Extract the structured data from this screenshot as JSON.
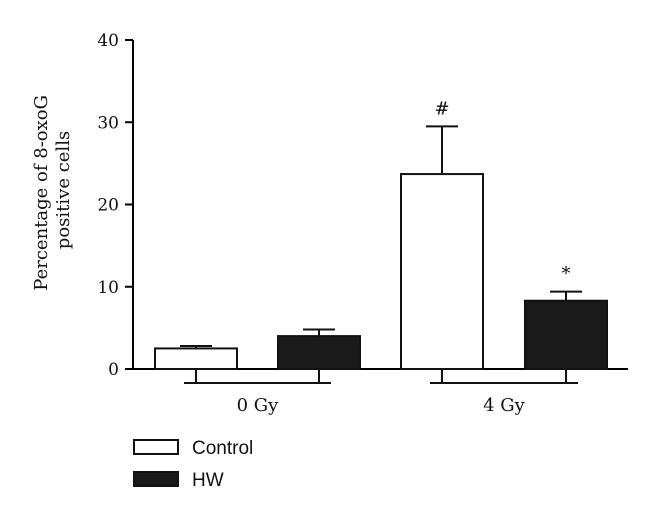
{
  "chart_data": {
    "type": "bar",
    "ylabel_lines": [
      "Percentage of 8-oxoG",
      "positive cells"
    ],
    "ylim": [
      0,
      40
    ],
    "yticks": [
      0,
      10,
      20,
      30,
      40
    ],
    "groups": [
      {
        "label": "0 Gy",
        "bars": [
          {
            "series": "Control",
            "value": 2.5,
            "error": 0.3,
            "annotation": ""
          },
          {
            "series": "HW",
            "value": 4.0,
            "error": 0.8,
            "annotation": ""
          }
        ]
      },
      {
        "label": "4 Gy",
        "bars": [
          {
            "series": "Control",
            "value": 23.7,
            "error": 5.8,
            "annotation": "#"
          },
          {
            "series": "HW",
            "value": 8.3,
            "error": 1.1,
            "annotation": "*"
          }
        ]
      }
    ],
    "series": [
      {
        "name": "Control",
        "fill": "#ffffff"
      },
      {
        "name": "HW",
        "fill": "#1a1a1a"
      }
    ],
    "legend_position": "bottom-left",
    "grid": false
  }
}
